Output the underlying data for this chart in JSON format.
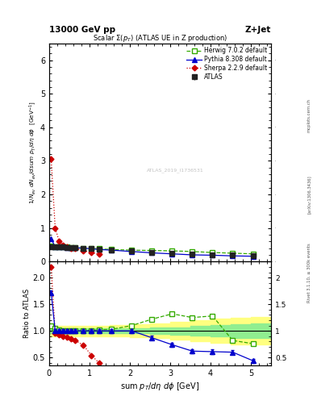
{
  "title_top": "13000 GeV pp",
  "title_right": "Z+Jet",
  "plot_title": "Scalar Σ(p_{T}) (ATLAS UE in Z production)",
  "xlabel": "sum p_{T}/dη dφ [GeV]",
  "ylabel_main": "1/N_{ev} dN_{ev}/dsum p_{T}/dη dφ  [GeV⁻¹]",
  "ylabel_ratio": "Ratio to ATLAS",
  "watermark": "ATLAS_2019_I1736531",
  "right_label1": "Rivet 3.1.10, ≥ 300k events",
  "right_label2": "[arXiv:1306.3436]",
  "right_label3": "mcplots.cern.ch",
  "atlas_x": [
    0.05,
    0.15,
    0.25,
    0.35,
    0.45,
    0.55,
    0.65,
    0.85,
    1.05,
    1.25,
    1.55,
    2.05,
    2.55,
    3.05,
    3.55,
    4.05,
    4.55,
    5.05
  ],
  "atlas_y": [
    0.45,
    0.44,
    0.43,
    0.43,
    0.42,
    0.42,
    0.41,
    0.4,
    0.38,
    0.37,
    0.35,
    0.31,
    0.27,
    0.24,
    0.22,
    0.2,
    0.19,
    0.18
  ],
  "atlas_yerr": [
    0.01,
    0.01,
    0.01,
    0.01,
    0.01,
    0.01,
    0.01,
    0.01,
    0.01,
    0.01,
    0.01,
    0.01,
    0.01,
    0.01,
    0.01,
    0.01,
    0.01,
    0.01
  ],
  "herwig_x": [
    0.05,
    0.15,
    0.25,
    0.35,
    0.45,
    0.55,
    0.65,
    0.85,
    1.05,
    1.25,
    1.55,
    2.05,
    2.55,
    3.05,
    3.55,
    4.05,
    4.55,
    5.05
  ],
  "herwig_y": [
    0.46,
    0.45,
    0.44,
    0.44,
    0.43,
    0.42,
    0.41,
    0.4,
    0.39,
    0.38,
    0.36,
    0.34,
    0.33,
    0.32,
    0.3,
    0.27,
    0.25,
    0.23
  ],
  "herwig_ratio": [
    1.1,
    1.05,
    1.02,
    1.01,
    1.01,
    1.0,
    1.0,
    1.0,
    1.01,
    1.02,
    1.03,
    1.1,
    1.22,
    1.32,
    1.25,
    1.28,
    0.82,
    0.76
  ],
  "pythia_x": [
    0.05,
    0.15,
    0.25,
    0.35,
    0.45,
    0.55,
    0.65,
    0.85,
    1.05,
    1.25,
    1.55,
    2.05,
    2.55,
    3.05,
    3.55,
    4.05,
    4.55,
    5.05
  ],
  "pythia_y": [
    0.68,
    0.44,
    0.43,
    0.43,
    0.42,
    0.42,
    0.41,
    0.4,
    0.38,
    0.36,
    0.34,
    0.3,
    0.26,
    0.23,
    0.2,
    0.19,
    0.17,
    0.16
  ],
  "pythia_ratio": [
    1.72,
    1.0,
    1.0,
    1.0,
    1.0,
    1.0,
    1.0,
    1.0,
    1.0,
    1.0,
    1.0,
    1.0,
    0.87,
    0.74,
    0.62,
    0.61,
    0.6,
    0.44
  ],
  "sherpa_x": [
    0.05,
    0.15,
    0.25,
    0.35,
    0.45,
    0.55,
    0.65,
    0.85,
    1.05,
    1.25
  ],
  "sherpa_y": [
    3.05,
    1.0,
    0.6,
    0.48,
    0.43,
    0.4,
    0.38,
    0.33,
    0.27,
    0.22
  ],
  "sherpa_ratio_x": [
    0.05,
    0.15,
    0.25,
    0.35,
    0.45,
    0.55,
    0.65,
    0.85,
    1.05,
    1.25
  ],
  "sherpa_ratio": [
    2.2,
    0.95,
    0.92,
    0.9,
    0.88,
    0.85,
    0.82,
    0.73,
    0.54,
    0.39
  ],
  "band_x": [
    0.0,
    0.5,
    1.0,
    1.5,
    2.0,
    2.5,
    3.0,
    3.5,
    4.0,
    4.5,
    5.0,
    5.5
  ],
  "band_green": [
    0.05,
    0.05,
    0.05,
    0.05,
    0.05,
    0.06,
    0.07,
    0.09,
    0.11,
    0.13,
    0.14,
    0.14
  ],
  "band_yellow": [
    0.1,
    0.1,
    0.1,
    0.11,
    0.12,
    0.14,
    0.17,
    0.2,
    0.23,
    0.25,
    0.26,
    0.26
  ],
  "xlim": [
    0,
    5.5
  ],
  "ylim_main": [
    0,
    6.5
  ],
  "ylim_ratio": [
    0.35,
    2.3
  ],
  "yticks_main": [
    0,
    1,
    2,
    3,
    4,
    5,
    6
  ],
  "yticks_ratio": [
    0.5,
    1.0,
    1.5,
    2.0
  ],
  "xticks": [
    0,
    1,
    2,
    3,
    4,
    5
  ],
  "atlas_color": "#222222",
  "herwig_color": "#33aa00",
  "pythia_color": "#0000cc",
  "sherpa_color": "#cc0000",
  "band_green_color": "#90ee90",
  "band_yellow_color": "#ffff80"
}
